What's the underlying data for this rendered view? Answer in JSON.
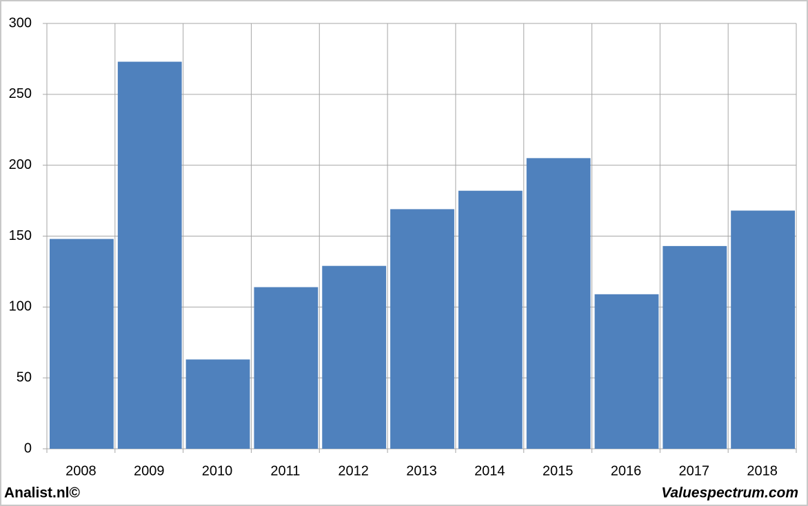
{
  "chart_data": {
    "type": "bar",
    "categories": [
      "2008",
      "2009",
      "2010",
      "2011",
      "2012",
      "2013",
      "2014",
      "2015",
      "2016",
      "2017",
      "2018"
    ],
    "values": [
      148,
      273,
      63,
      114,
      129,
      169,
      182,
      205,
      109,
      143,
      168
    ],
    "color": "#4f81bd",
    "ylim": [
      0,
      300
    ],
    "yticks": [
      0,
      50,
      100,
      150,
      200,
      250,
      300
    ],
    "grid": true,
    "annotations": [
      "Analist.nl©",
      "Valuespectrum.com"
    ]
  }
}
